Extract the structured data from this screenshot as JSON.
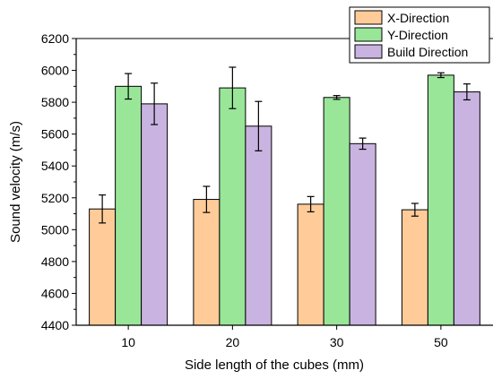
{
  "chart_data": {
    "type": "bar",
    "title": "",
    "xlabel": "Side length of the cubes (mm)",
    "ylabel": "Sound velocity (m/s)",
    "ylim": [
      4400,
      6200
    ],
    "yticks": [
      4400,
      4600,
      4800,
      5000,
      5200,
      5400,
      5600,
      5800,
      6000,
      6200
    ],
    "categories": [
      "10",
      "20",
      "30",
      "50"
    ],
    "grid": false,
    "legend_position": "top-right",
    "series": [
      {
        "name": "X-Direction",
        "color": "#ffcc99",
        "values": [
          5130,
          5190,
          5160,
          5125
        ],
        "errors": [
          88,
          82,
          48,
          40
        ]
      },
      {
        "name": "Y-Direction",
        "color": "#99e699",
        "values": [
          5900,
          5890,
          5830,
          5970
        ],
        "errors": [
          80,
          130,
          12,
          15
        ]
      },
      {
        "name": "Build Direction",
        "color": "#c9b3e0",
        "values": [
          5790,
          5650,
          5540,
          5865
        ],
        "errors": [
          130,
          155,
          35,
          50
        ]
      }
    ]
  }
}
